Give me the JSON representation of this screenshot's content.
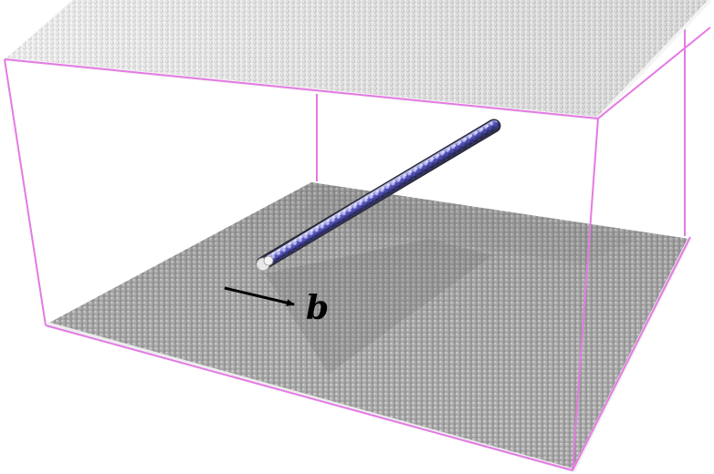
{
  "colors": {
    "background": "#ffffff",
    "box_edge": "#e47ae4",
    "top_plane": "#d9d9d9",
    "top_plane_edge": "#f2f2f2",
    "bottom_plane": "#9e9e9e",
    "bottom_plane_edge": "#ececec",
    "dislocation_blue": "#4a4ab8",
    "dislocation_dark": "#3b3b58",
    "dislocation_light": "#e8e8ff",
    "arrow": "#000000",
    "shadow": "#7a7a7a"
  },
  "icons": {
    "burgers_arrow": "right-arrow-icon"
  },
  "labels": {
    "burgers_vector": "b"
  }
}
